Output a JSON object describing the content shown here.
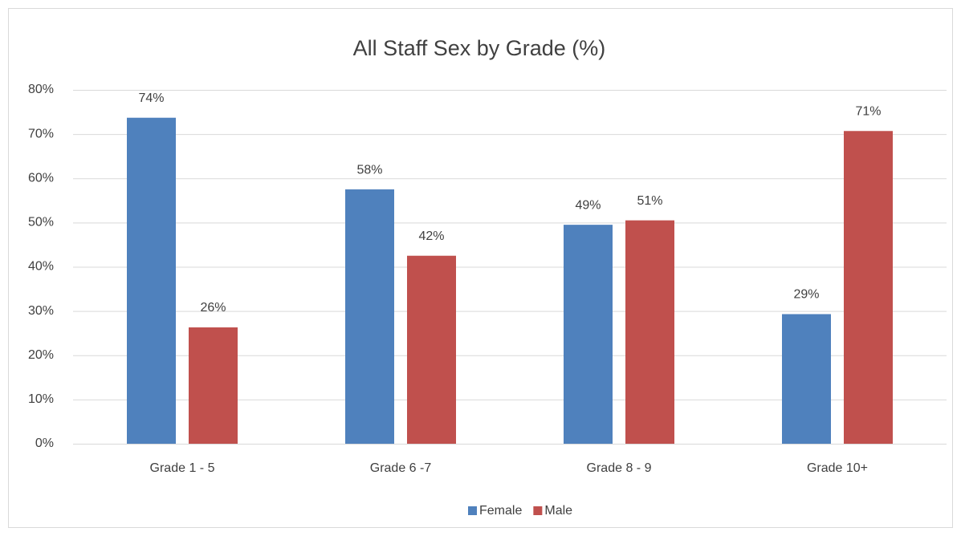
{
  "chart_data": {
    "type": "bar",
    "title": "All Staff Sex by Grade (%)",
    "categories": [
      "Grade 1 - 5",
      "Grade 6 -7",
      "Grade 8 - 9",
      "Grade 10+"
    ],
    "series": [
      {
        "name": "Female",
        "color": "#4f81bd",
        "values": [
          73.7,
          57.5,
          49.5,
          29.3
        ],
        "value_labels": [
          "74%",
          "58%",
          "49%",
          "29%"
        ]
      },
      {
        "name": "Male",
        "color": "#c0504d",
        "values": [
          26.3,
          42.5,
          50.5,
          70.7
        ],
        "value_labels": [
          "26%",
          "42%",
          "51%",
          "71%"
        ]
      }
    ],
    "ylim": [
      0,
      80
    ],
    "yticks": [
      {
        "value": 0,
        "label": "0%"
      },
      {
        "value": 10,
        "label": "10%"
      },
      {
        "value": 20,
        "label": "20%"
      },
      {
        "value": 30,
        "label": "30%"
      },
      {
        "value": 40,
        "label": "40%"
      },
      {
        "value": 50,
        "label": "50%"
      },
      {
        "value": 60,
        "label": "60%"
      },
      {
        "value": 70,
        "label": "70%"
      },
      {
        "value": 80,
        "label": "80%"
      }
    ],
    "grid": true,
    "legend": "bottom"
  }
}
